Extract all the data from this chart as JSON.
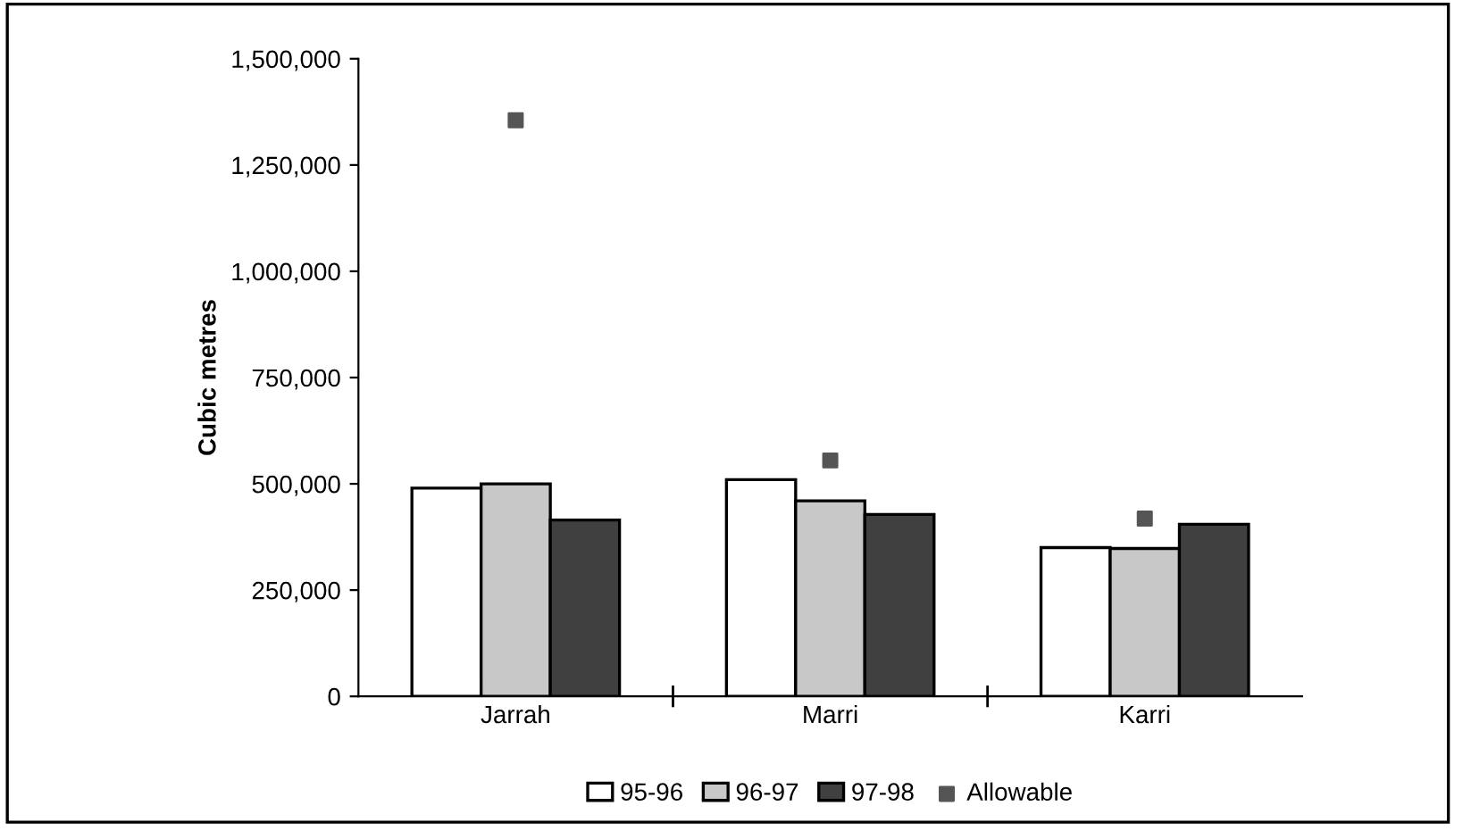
{
  "chart_data": {
    "type": "bar",
    "ylabel": "Cubic metres",
    "categories": [
      "Jarrah",
      "Marri",
      "Karri"
    ],
    "series": [
      {
        "name": "95-96",
        "color": "#ffffff",
        "values": [
          490000,
          510000,
          350000
        ]
      },
      {
        "name": "96-97",
        "color": "#c8c8c8",
        "values": [
          500000,
          460000,
          348000
        ]
      },
      {
        "name": "97-98",
        "color": "#404040",
        "values": [
          415000,
          428000,
          405000
        ]
      },
      {
        "name": "Allowable",
        "type": "scatter",
        "color": "#555555",
        "marker": "square",
        "values": [
          1355000,
          555000,
          418000
        ]
      }
    ],
    "ylim": [
      0,
      1500000
    ],
    "yticks": [
      {
        "value": 0,
        "label": "0"
      },
      {
        "value": 250000,
        "label": "250,000"
      },
      {
        "value": 500000,
        "label": "500,000"
      },
      {
        "value": 750000,
        "label": "750,000"
      },
      {
        "value": 1000000,
        "label": "1,000,000"
      },
      {
        "value": 1250000,
        "label": "1,250,000"
      },
      {
        "value": 1500000,
        "label": "1,500,000"
      }
    ],
    "grid": false,
    "legend": "bottom"
  }
}
